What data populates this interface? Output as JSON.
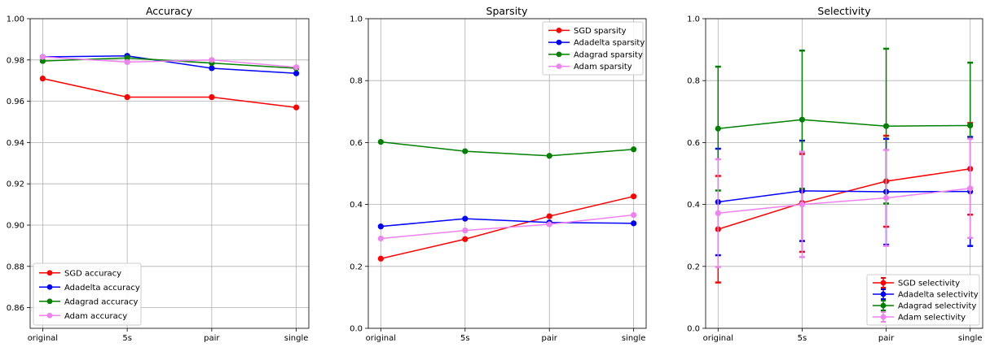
{
  "chart_data": [
    {
      "type": "line",
      "title": "Accuracy",
      "categories": [
        "original",
        "5s",
        "pair",
        "single"
      ],
      "ylim": [
        0.85,
        1.0
      ],
      "yticks": [
        "0.86",
        "0.88",
        "0.90",
        "0.92",
        "0.94",
        "0.96",
        "0.98",
        "1.00"
      ],
      "grid": true,
      "legend_position": "lower-left",
      "series": [
        {
          "name": "SGD accuracy",
          "color": "#ff0000",
          "values": [
            0.971,
            0.962,
            0.962,
            0.957
          ]
        },
        {
          "name": "Adadelta accuracy",
          "color": "#0000ff",
          "values": [
            0.9815,
            0.982,
            0.976,
            0.9735
          ]
        },
        {
          "name": "Adagrad accuracy",
          "color": "#008000",
          "values": [
            0.9795,
            0.981,
            0.9785,
            0.976
          ]
        },
        {
          "name": "Adam accuracy",
          "color": "#ee82ee",
          "values": [
            0.9815,
            0.979,
            0.98,
            0.9765
          ]
        }
      ]
    },
    {
      "type": "line",
      "title": "Sparsity",
      "categories": [
        "original",
        "5s",
        "pair",
        "single"
      ],
      "ylim": [
        0.0,
        1.0
      ],
      "yticks": [
        "0.0",
        "0.2",
        "0.4",
        "0.6",
        "0.8",
        "1.0"
      ],
      "grid": true,
      "legend_position": "upper-right",
      "series": [
        {
          "name": "SGD sparsity",
          "color": "#ff0000",
          "values": [
            0.225,
            0.288,
            0.362,
            0.426
          ]
        },
        {
          "name": "Adadelta sparsity",
          "color": "#0000ff",
          "values": [
            0.329,
            0.354,
            0.342,
            0.339
          ]
        },
        {
          "name": "Adagrad sparsity",
          "color": "#008000",
          "values": [
            0.602,
            0.572,
            0.557,
            0.578
          ]
        },
        {
          "name": "Adam sparsity",
          "color": "#ee82ee",
          "values": [
            0.29,
            0.316,
            0.336,
            0.366
          ]
        }
      ]
    },
    {
      "type": "line",
      "title": "Selectivity",
      "categories": [
        "original",
        "5s",
        "pair",
        "single"
      ],
      "ylim": [
        0.0,
        1.0
      ],
      "yticks": [
        "0.0",
        "0.2",
        "0.4",
        "0.6",
        "0.8",
        "1.0"
      ],
      "grid": true,
      "legend_position": "lower-right",
      "error_bars": true,
      "series": [
        {
          "name": "SGD selectivity",
          "color": "#ff0000",
          "values": [
            0.32,
            0.405,
            0.475,
            0.515
          ],
          "errors": [
            0.172,
            0.158,
            0.147,
            0.148
          ]
        },
        {
          "name": "Adadelta selectivity",
          "color": "#0000ff",
          "values": [
            0.408,
            0.444,
            0.441,
            0.442
          ],
          "errors": [
            0.172,
            0.162,
            0.171,
            0.176
          ]
        },
        {
          "name": "Adagrad selectivity",
          "color": "#008000",
          "values": [
            0.645,
            0.674,
            0.653,
            0.655
          ],
          "errors": [
            0.2,
            0.223,
            0.25,
            0.203
          ]
        },
        {
          "name": "Adam selectivity",
          "color": "#ee82ee",
          "values": [
            0.372,
            0.4,
            0.421,
            0.452
          ],
          "errors": [
            0.174,
            0.17,
            0.155,
            0.16
          ]
        }
      ]
    }
  ]
}
